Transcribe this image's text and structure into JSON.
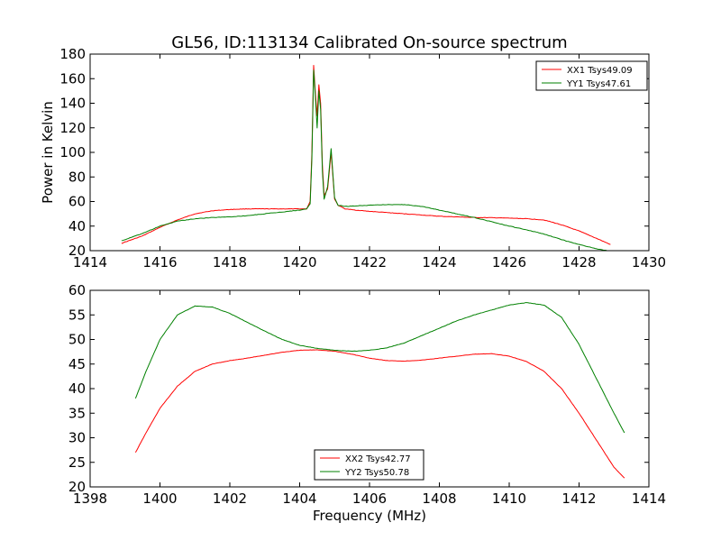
{
  "title": "GL56, ID:113134 Calibrated On-source spectrum",
  "chart_data": [
    {
      "type": "line",
      "xlim": [
        1414,
        1430
      ],
      "ylim": [
        20,
        180
      ],
      "xticks": [
        1414,
        1416,
        1418,
        1420,
        1422,
        1424,
        1426,
        1428,
        1430
      ],
      "yticks": [
        20,
        40,
        60,
        80,
        100,
        120,
        140,
        160,
        180
      ],
      "xlabel": "",
      "ylabel": "Power in Kelvin",
      "grid": false,
      "legend_position": "top-right",
      "series": [
        {
          "name": "XX1 Tsys49.09",
          "color": "#ff0000",
          "x": [
            1414.9,
            1415.5,
            1416.0,
            1416.5,
            1417.0,
            1417.5,
            1418.0,
            1418.5,
            1419.0,
            1419.5,
            1420.0,
            1420.2,
            1420.3,
            1420.35,
            1420.4,
            1420.45,
            1420.5,
            1420.55,
            1420.6,
            1420.65,
            1420.7,
            1420.8,
            1420.9,
            1421.0,
            1421.1,
            1421.3,
            1421.6,
            1422.0,
            1422.5,
            1423.0,
            1423.5,
            1424.0,
            1424.5,
            1425.0,
            1425.5,
            1426.0,
            1426.5,
            1427.0,
            1427.5,
            1428.0,
            1428.5,
            1428.9
          ],
          "y": [
            26,
            32,
            39,
            45,
            50,
            52.5,
            53.5,
            54,
            54,
            54,
            54,
            54,
            60,
            100,
            171,
            148,
            130,
            155,
            140,
            90,
            65,
            70,
            100,
            62,
            57,
            54,
            53,
            52,
            51,
            50,
            49,
            48,
            47.5,
            47,
            46.8,
            46.5,
            46,
            45,
            41,
            36,
            30,
            25
          ]
        },
        {
          "name": "YY1 Tsys47.61",
          "color": "#008000",
          "x": [
            1414.9,
            1415.5,
            1416.0,
            1416.5,
            1417.0,
            1417.5,
            1418.0,
            1418.5,
            1419.0,
            1419.5,
            1420.0,
            1420.2,
            1420.3,
            1420.35,
            1420.4,
            1420.45,
            1420.5,
            1420.55,
            1420.6,
            1420.65,
            1420.7,
            1420.8,
            1420.9,
            1421.0,
            1421.1,
            1421.3,
            1421.6,
            1422.0,
            1422.5,
            1423.0,
            1423.5,
            1424.0,
            1424.5,
            1425.0,
            1425.5,
            1426.0,
            1426.5,
            1427.0,
            1427.5,
            1428.0,
            1428.5,
            1428.9
          ],
          "y": [
            28,
            34,
            40,
            44,
            46,
            47,
            47.5,
            48.5,
            50,
            51.5,
            53,
            54,
            58,
            95,
            167,
            145,
            120,
            150,
            135,
            85,
            62,
            72,
            103,
            63,
            57,
            56,
            56.5,
            57,
            57.5,
            57.5,
            56,
            53,
            50,
            47,
            43.5,
            40,
            37,
            33.5,
            29,
            25,
            21.5,
            19.5
          ]
        }
      ]
    },
    {
      "type": "line",
      "xlim": [
        1398,
        1414
      ],
      "ylim": [
        20,
        60
      ],
      "xticks": [
        1398,
        1400,
        1402,
        1404,
        1406,
        1408,
        1410,
        1412,
        1414
      ],
      "yticks": [
        20,
        25,
        30,
        35,
        40,
        45,
        50,
        55,
        60
      ],
      "xlabel": "Frequency (MHz)",
      "ylabel": "",
      "grid": false,
      "legend_position": "bottom-center",
      "series": [
        {
          "name": "XX2 Tsys42.77",
          "color": "#ff0000",
          "x": [
            1399.3,
            1399.6,
            1400.0,
            1400.5,
            1401.0,
            1401.5,
            1402.0,
            1402.5,
            1403.0,
            1403.5,
            1404.0,
            1404.5,
            1405.0,
            1405.5,
            1406.0,
            1406.5,
            1407.0,
            1407.5,
            1408.0,
            1408.5,
            1409.0,
            1409.5,
            1410.0,
            1410.5,
            1411.0,
            1411.5,
            1412.0,
            1412.5,
            1413.0,
            1413.3
          ],
          "y": [
            27,
            31,
            36,
            40.5,
            43.5,
            45,
            45.7,
            46.2,
            46.8,
            47.4,
            47.8,
            47.9,
            47.6,
            47,
            46.2,
            45.7,
            45.6,
            45.8,
            46.2,
            46.6,
            47,
            47.1,
            46.6,
            45.5,
            43.5,
            40,
            35,
            29.5,
            24,
            21.8
          ]
        },
        {
          "name": "YY2 Tsys50.78",
          "color": "#008000",
          "x": [
            1399.3,
            1399.6,
            1400.0,
            1400.5,
            1401.0,
            1401.5,
            1402.0,
            1402.5,
            1403.0,
            1403.5,
            1404.0,
            1404.5,
            1405.0,
            1405.5,
            1406.0,
            1406.5,
            1407.0,
            1407.5,
            1408.0,
            1408.5,
            1409.0,
            1409.5,
            1410.0,
            1410.5,
            1411.0,
            1411.5,
            1412.0,
            1412.5,
            1413.0,
            1413.3
          ],
          "y": [
            38,
            43.5,
            50,
            55,
            56.8,
            56.6,
            55.3,
            53.5,
            51.7,
            50,
            48.8,
            48.2,
            47.8,
            47.6,
            47.8,
            48.3,
            49.3,
            50.8,
            52.3,
            53.8,
            55,
            56,
            57,
            57.5,
            57,
            54.5,
            49,
            42,
            35,
            31
          ]
        }
      ]
    }
  ]
}
